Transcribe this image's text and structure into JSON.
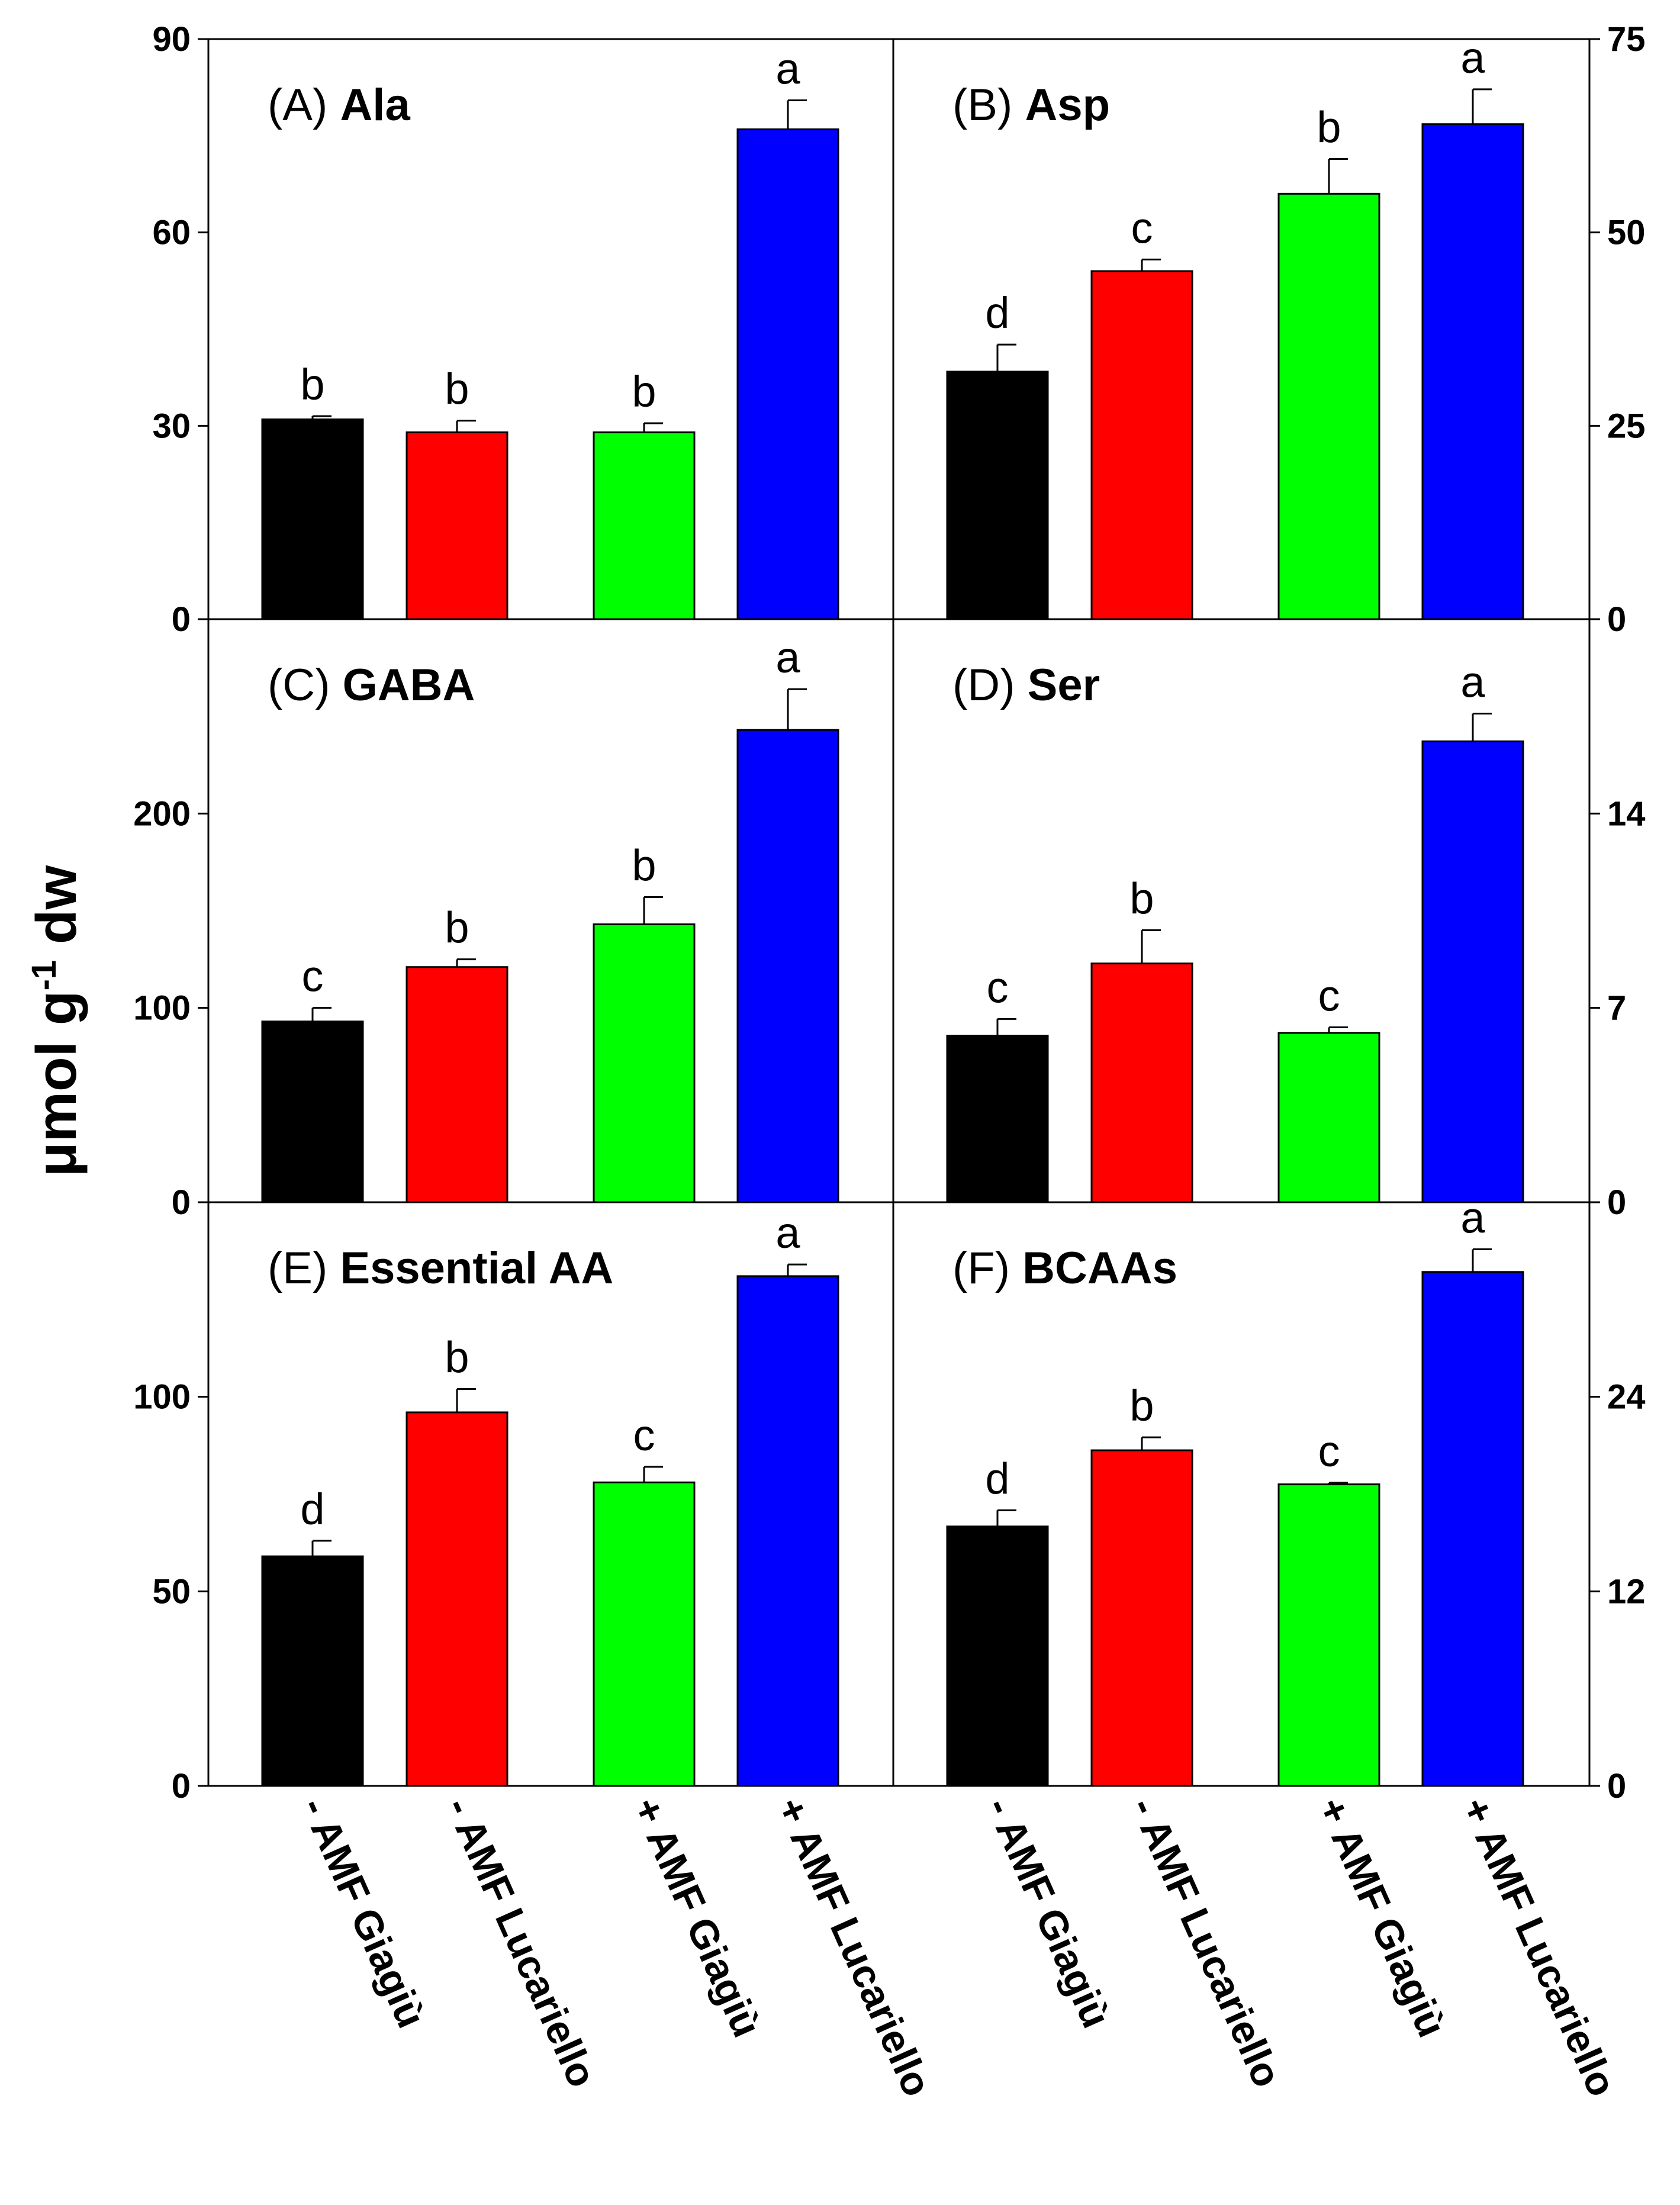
{
  "figure": {
    "ylabel_main": "μmol g",
    "ylabel_sup": "-1",
    "ylabel_unit": " dw"
  },
  "chart_data": [
    {
      "type": "bar",
      "panel": "(A)",
      "title": "Ala",
      "categories": [
        "- AMF Giagiù",
        "- AMF Lucariello",
        "+ AMF Giagiù",
        "+ AMF Lucariello"
      ],
      "values": [
        31,
        29,
        29,
        76
      ],
      "errors": [
        0.5,
        1.8,
        1.4,
        4.5
      ],
      "letters": [
        "b",
        "b",
        "b",
        "a"
      ],
      "colors": [
        "#000000",
        "#ff0000",
        "#00ff00",
        "#0000ff"
      ],
      "ylim": [
        0,
        90
      ],
      "ticks": [
        0,
        30,
        60,
        90
      ],
      "axis_side": "left"
    },
    {
      "type": "bar",
      "panel": "(B)",
      "title": "Asp",
      "categories": [
        "- AMF Giagiù",
        "- AMF Lucariello",
        "+ AMF Giagiù",
        "+ AMF Lucariello"
      ],
      "values": [
        32,
        45,
        55,
        64
      ],
      "errors": [
        3.5,
        1.5,
        4.5,
        4.5
      ],
      "letters": [
        "d",
        "c",
        "b",
        "a"
      ],
      "colors": [
        "#000000",
        "#ff0000",
        "#00ff00",
        "#0000ff"
      ],
      "ylim": [
        0,
        75
      ],
      "ticks": [
        0,
        25,
        50,
        75
      ],
      "axis_side": "right"
    },
    {
      "type": "bar",
      "panel": "(C)",
      "title": "GABA",
      "categories": [
        "- AMF Giagiù",
        "- AMF Lucariello",
        "+ AMF Giagiù",
        "+ AMF Lucariello"
      ],
      "values": [
        93,
        121,
        143,
        243
      ],
      "errors": [
        7,
        4,
        14,
        21
      ],
      "letters": [
        "c",
        "b",
        "b",
        "a"
      ],
      "colors": [
        "#000000",
        "#ff0000",
        "#00ff00",
        "#0000ff"
      ],
      "ylim": [
        0,
        300
      ],
      "ticks": [
        0,
        100,
        200
      ],
      "axis_side": "left"
    },
    {
      "type": "bar",
      "panel": "(D)",
      "title": "Ser",
      "categories": [
        "- AMF Giagiù",
        "- AMF Lucariello",
        "+ AMF Giagiù",
        "+ AMF Lucariello"
      ],
      "values": [
        6.0,
        8.6,
        6.1,
        16.6
      ],
      "errors": [
        0.6,
        1.2,
        0.2,
        1.0
      ],
      "letters": [
        "c",
        "b",
        "c",
        "a"
      ],
      "colors": [
        "#000000",
        "#ff0000",
        "#00ff00",
        "#0000ff"
      ],
      "ylim": [
        0,
        21
      ],
      "ticks": [
        0,
        7,
        14
      ],
      "axis_side": "right"
    },
    {
      "type": "bar",
      "panel": "(E)",
      "title": "Essential AA",
      "categories": [
        "- AMF Giagiù",
        "- AMF Lucariello",
        "+ AMF Giagiù",
        "+ AMF Lucariello"
      ],
      "values": [
        59,
        96,
        78,
        131
      ],
      "errors": [
        4,
        6,
        4,
        3
      ],
      "letters": [
        "d",
        "b",
        "c",
        "a"
      ],
      "colors": [
        "#000000",
        "#ff0000",
        "#00ff00",
        "#0000ff"
      ],
      "ylim": [
        0,
        150
      ],
      "ticks": [
        0,
        50,
        100
      ],
      "axis_side": "left"
    },
    {
      "type": "bar",
      "panel": "(F)",
      "title": "BCAAs",
      "categories": [
        "- AMF Giagiù",
        "- AMF Lucariello",
        "+ AMF Giagiù",
        "+ AMF Lucariello"
      ],
      "values": [
        16,
        20.7,
        18.6,
        31.7
      ],
      "errors": [
        1.0,
        0.8,
        0.1,
        1.4
      ],
      "letters": [
        "d",
        "b",
        "c",
        "a"
      ],
      "colors": [
        "#000000",
        "#ff0000",
        "#00ff00",
        "#0000ff"
      ],
      "ylim": [
        0,
        36
      ],
      "ticks": [
        0,
        12,
        24
      ],
      "axis_side": "right"
    }
  ]
}
